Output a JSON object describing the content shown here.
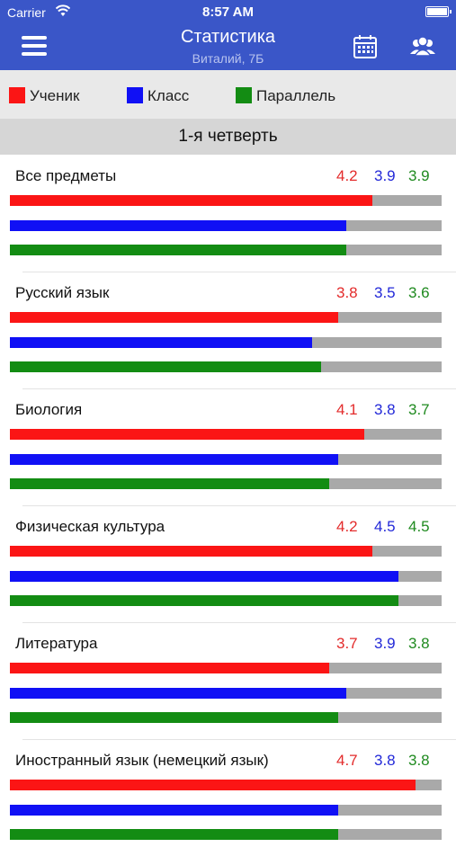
{
  "status_bar": {
    "carrier": "Carrier",
    "time": "8:57 AM"
  },
  "nav": {
    "title": "Статистика",
    "subtitle": "Виталий, 7Б"
  },
  "legend": [
    {
      "label": "Ученик",
      "color": "#fb1515"
    },
    {
      "label": "Класс",
      "color": "#1010f5"
    },
    {
      "label": "Параллель",
      "color": "#138c13"
    }
  ],
  "period": "1-я четверть",
  "max_grade": 5,
  "subjects": [
    {
      "name": "Все предметы",
      "student": "4.2",
      "class": "3.9",
      "parallel": "3.9"
    },
    {
      "name": "Русский язык",
      "student": "3.8",
      "class": "3.5",
      "parallel": "3.6"
    },
    {
      "name": "Биология",
      "student": "4.1",
      "class": "3.8",
      "parallel": "3.7"
    },
    {
      "name": "Физическая культура",
      "student": "4.2",
      "class": "4.5",
      "parallel": "4.5"
    },
    {
      "name": "Литература",
      "student": "3.7",
      "class": "3.9",
      "parallel": "3.8"
    },
    {
      "name": "Иностранный язык (немецкий язык)",
      "student": "4.7",
      "class": "3.8",
      "parallel": "3.8"
    }
  ]
}
